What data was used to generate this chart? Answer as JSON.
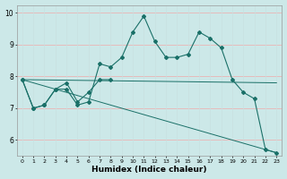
{
  "title": "",
  "xlabel": "Humidex (Indice chaleur)",
  "x": [
    0,
    1,
    2,
    3,
    4,
    5,
    6,
    7,
    8,
    9,
    10,
    11,
    12,
    13,
    14,
    15,
    16,
    17,
    18,
    19,
    20,
    21,
    22,
    23
  ],
  "line1": [
    7.9,
    7.0,
    7.1,
    7.6,
    7.6,
    7.1,
    7.2,
    8.4,
    8.3,
    8.6,
    9.4,
    9.9,
    9.1,
    8.6,
    8.6,
    8.7,
    9.4,
    9.2,
    8.9,
    7.9,
    7.5,
    7.3,
    5.7,
    5.6
  ],
  "line2_x": [
    0,
    1,
    2,
    3,
    4,
    5,
    6,
    7,
    8
  ],
  "line2_y": [
    7.9,
    7.0,
    7.1,
    7.6,
    7.8,
    7.2,
    7.5,
    7.9,
    7.9
  ],
  "line3_x": [
    0,
    23
  ],
  "line3_y": [
    7.9,
    7.8
  ],
  "line4_x": [
    0,
    23
  ],
  "line4_y": [
    7.9,
    5.6
  ],
  "line_color": "#1a7068",
  "bg_color": "#cce8e8",
  "grid_color_h": "#f0aaaa",
  "grid_color_v": "#c8e0e0",
  "ylim": [
    5.5,
    10.25
  ],
  "xlim": [
    -0.5,
    23.5
  ],
  "yticks": [
    6,
    7,
    8,
    9,
    10
  ],
  "xticks": [
    0,
    1,
    2,
    3,
    4,
    5,
    6,
    7,
    8,
    9,
    10,
    11,
    12,
    13,
    14,
    15,
    16,
    17,
    18,
    19,
    20,
    21,
    22,
    23
  ]
}
